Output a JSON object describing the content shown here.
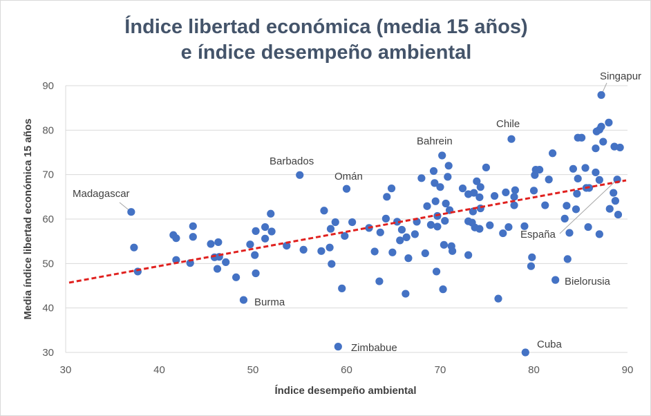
{
  "chart_data": {
    "type": "scatter",
    "title_line1": "Índice libertad económica (media 15 años)",
    "title_line2": "e índice desempeño ambiental",
    "xlabel": "Índice desempeño ambiental",
    "ylabel": "Media índice libertad económica 15 años",
    "xlim": [
      30,
      90
    ],
    "ylim": [
      30,
      90
    ],
    "xticks": [
      30,
      40,
      50,
      60,
      70,
      80,
      90
    ],
    "yticks": [
      30,
      40,
      50,
      60,
      70,
      80,
      90
    ],
    "grid": "horizontal",
    "colors": {
      "point": "#4472c4",
      "trend": "#e0211f",
      "grid": "#d9d9d9",
      "title": "#44546a"
    },
    "trendline": {
      "style": "dashed",
      "x": [
        30,
        90
      ],
      "y": [
        45.7,
        68.7
      ]
    },
    "points": [
      [
        37.0,
        61.6
      ],
      [
        37.3,
        53.6
      ],
      [
        37.7,
        48.2
      ],
      [
        41.5,
        56.4
      ],
      [
        41.8,
        55.7
      ],
      [
        41.8,
        50.8
      ],
      [
        43.3,
        50.1
      ],
      [
        43.6,
        58.4
      ],
      [
        43.6,
        56.0
      ],
      [
        45.5,
        54.4
      ],
      [
        45.9,
        51.4
      ],
      [
        46.2,
        48.8
      ],
      [
        46.4,
        51.5
      ],
      [
        46.3,
        54.8
      ],
      [
        47.1,
        50.3
      ],
      [
        48.2,
        46.9
      ],
      [
        49.0,
        41.8
      ],
      [
        49.7,
        54.3
      ],
      [
        50.2,
        51.9
      ],
      [
        50.3,
        57.3
      ],
      [
        50.3,
        47.8
      ],
      [
        51.3,
        55.6
      ],
      [
        51.3,
        58.2
      ],
      [
        51.9,
        61.2
      ],
      [
        52.0,
        57.2
      ],
      [
        53.6,
        54.0
      ],
      [
        55.0,
        69.9
      ],
      [
        55.4,
        53.1
      ],
      [
        57.3,
        52.8
      ],
      [
        57.6,
        61.9
      ],
      [
        58.2,
        53.6
      ],
      [
        58.3,
        57.8
      ],
      [
        58.4,
        49.9
      ],
      [
        58.8,
        59.3
      ],
      [
        59.1,
        31.3
      ],
      [
        59.5,
        44.4
      ],
      [
        59.8,
        56.2
      ],
      [
        60.0,
        66.8
      ],
      [
        60.6,
        59.3
      ],
      [
        62.4,
        58.0
      ],
      [
        63.0,
        52.7
      ],
      [
        63.5,
        46.0
      ],
      [
        63.6,
        57.0
      ],
      [
        64.2,
        60.1
      ],
      [
        64.3,
        65.0
      ],
      [
        64.8,
        66.9
      ],
      [
        64.9,
        52.5
      ],
      [
        65.4,
        59.4
      ],
      [
        65.7,
        55.2
      ],
      [
        65.9,
        57.6
      ],
      [
        66.3,
        43.2
      ],
      [
        66.4,
        55.9
      ],
      [
        66.6,
        51.2
      ],
      [
        67.3,
        56.6
      ],
      [
        67.5,
        59.4
      ],
      [
        68.0,
        69.2
      ],
      [
        68.4,
        52.3
      ],
      [
        68.6,
        62.9
      ],
      [
        69.0,
        58.7
      ],
      [
        69.3,
        70.8
      ],
      [
        69.4,
        68.1
      ],
      [
        69.5,
        64.0
      ],
      [
        69.6,
        48.2
      ],
      [
        69.7,
        58.3
      ],
      [
        69.7,
        60.7
      ],
      [
        70.0,
        67.2
      ],
      [
        70.2,
        74.3
      ],
      [
        70.3,
        44.2
      ],
      [
        70.4,
        54.2
      ],
      [
        70.5,
        59.6
      ],
      [
        70.6,
        63.5
      ],
      [
        70.8,
        69.5
      ],
      [
        70.9,
        72.0
      ],
      [
        71.0,
        62.0
      ],
      [
        71.2,
        53.9
      ],
      [
        71.3,
        52.8
      ],
      [
        72.4,
        66.9
      ],
      [
        73.0,
        65.6
      ],
      [
        73.0,
        59.5
      ],
      [
        73.0,
        51.9
      ],
      [
        73.4,
        59.2
      ],
      [
        73.5,
        61.7
      ],
      [
        73.6,
        65.9
      ],
      [
        73.7,
        58.1
      ],
      [
        73.9,
        68.5
      ],
      [
        74.2,
        64.9
      ],
      [
        74.2,
        57.8
      ],
      [
        74.3,
        67.2
      ],
      [
        74.3,
        62.4
      ],
      [
        74.9,
        71.6
      ],
      [
        75.3,
        58.6
      ],
      [
        75.8,
        65.2
      ],
      [
        76.2,
        42.1
      ],
      [
        76.7,
        56.8
      ],
      [
        77.0,
        66.0
      ],
      [
        77.3,
        58.2
      ],
      [
        77.6,
        78.0
      ],
      [
        77.9,
        65.0
      ],
      [
        77.9,
        63.1
      ],
      [
        78.0,
        66.5
      ],
      [
        79.0,
        58.4
      ],
      [
        79.7,
        49.4
      ],
      [
        79.8,
        51.4
      ],
      [
        80.0,
        66.4
      ],
      [
        80.1,
        69.9
      ],
      [
        80.2,
        71.1
      ],
      [
        80.6,
        71.1
      ],
      [
        81.2,
        63.1
      ],
      [
        81.6,
        68.9
      ],
      [
        82.0,
        74.8
      ],
      [
        82.3,
        46.3
      ],
      [
        83.3,
        60.1
      ],
      [
        83.5,
        63.0
      ],
      [
        83.6,
        51.0
      ],
      [
        83.8,
        56.9
      ],
      [
        84.2,
        71.3
      ],
      [
        84.5,
        62.2
      ],
      [
        84.6,
        65.7
      ],
      [
        84.7,
        78.3
      ],
      [
        84.7,
        69.1
      ],
      [
        85.1,
        78.3
      ],
      [
        85.5,
        71.5
      ],
      [
        85.6,
        67.0
      ],
      [
        85.8,
        58.2
      ],
      [
        85.9,
        67.0
      ],
      [
        86.6,
        75.9
      ],
      [
        86.6,
        70.5
      ],
      [
        86.7,
        79.7
      ],
      [
        87.0,
        80.1
      ],
      [
        87.0,
        68.8
      ],
      [
        87.0,
        56.6
      ],
      [
        87.2,
        80.8
      ],
      [
        87.2,
        87.9
      ],
      [
        87.4,
        77.4
      ],
      [
        88.0,
        81.7
      ],
      [
        88.1,
        62.3
      ],
      [
        88.5,
        65.9
      ],
      [
        88.6,
        76.3
      ],
      [
        88.7,
        64.1
      ],
      [
        88.9,
        68.9
      ],
      [
        89.0,
        61.0
      ],
      [
        89.2,
        76.1
      ],
      [
        79.1,
        30.0
      ]
    ],
    "annotations": [
      {
        "text": "Singapur",
        "x": 87.2,
        "y": 87.9,
        "leader": true
      },
      {
        "text": "Chile",
        "x": 77.6,
        "y": 78.0,
        "leader": false
      },
      {
        "text": "Bahrein",
        "x": 70.2,
        "y": 74.3,
        "leader": false
      },
      {
        "text": "Barbados",
        "x": 55.0,
        "y": 69.9,
        "leader": false
      },
      {
        "text": "Omán",
        "x": 60.0,
        "y": 66.8,
        "leader": false
      },
      {
        "text": "Madagascar",
        "x": 37.0,
        "y": 61.6,
        "leader": true
      },
      {
        "text": "España",
        "x": 88.9,
        "y": 68.9,
        "leader": true
      },
      {
        "text": "Bielorusia",
        "x": 82.3,
        "y": 46.3,
        "leader": false
      },
      {
        "text": "Burma",
        "x": 49.0,
        "y": 41.8,
        "leader": false
      },
      {
        "text": "Zimbabue",
        "x": 59.1,
        "y": 31.3,
        "leader": false
      },
      {
        "text": "Cuba",
        "x": 79.1,
        "y": 30.0,
        "leader": false
      }
    ]
  }
}
